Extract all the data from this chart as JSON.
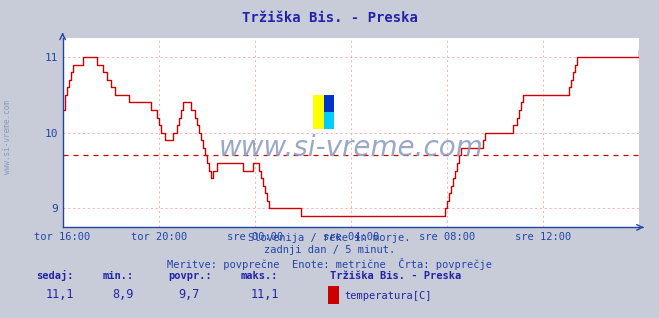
{
  "title": "Tržiška Bis. - Preska",
  "title_color": "#2222aa",
  "bg_color": "#c8ccd8",
  "plot_bg_color": "#ffffff",
  "line_color": "#cc0000",
  "avg_line_color": "#cc0000",
  "avg_value": 9.7,
  "ymin": 8.75,
  "ymax": 11.25,
  "yticks": [
    9,
    10,
    11
  ],
  "tick_color": "#2244aa",
  "grid_color": "#ffaaaa",
  "watermark_text": "www.si-vreme.com",
  "watermark_color": "#8899bb",
  "left_label": "www.si-vreme.com",
  "subtitle1": "Slovenija / reke in morje.",
  "subtitle2": "zadnji dan / 5 minut.",
  "subtitle3": "Meritve: povprečne  Enote: metrične  Črta: povprečje",
  "subtitle_color": "#2244aa",
  "footer_label_color": "#2222aa",
  "footer_value_color": "#2222aa",
  "sedaj": "11,1",
  "min_val": "8,9",
  "povpr": "9,7",
  "maks": "11,1",
  "station": "Tržiška Bis. - Preska",
  "param": "temperatura[C]",
  "xtick_labels": [
    "tor 16:00",
    "tor 20:00",
    "sre 00:00",
    "sre 04:00",
    "sre 08:00",
    "sre 12:00"
  ],
  "xtick_positions": [
    0,
    48,
    96,
    144,
    192,
    240
  ],
  "n_points": 289,
  "temperature_data": [
    10.3,
    10.5,
    10.6,
    10.7,
    10.8,
    10.9,
    10.9,
    10.9,
    10.9,
    10.9,
    11.0,
    11.0,
    11.0,
    11.0,
    11.0,
    11.0,
    11.0,
    10.9,
    10.9,
    10.9,
    10.8,
    10.8,
    10.7,
    10.7,
    10.6,
    10.6,
    10.5,
    10.5,
    10.5,
    10.5,
    10.5,
    10.5,
    10.5,
    10.4,
    10.4,
    10.4,
    10.4,
    10.4,
    10.4,
    10.4,
    10.4,
    10.4,
    10.4,
    10.4,
    10.3,
    10.3,
    10.3,
    10.2,
    10.1,
    10.0,
    10.0,
    9.9,
    9.9,
    9.9,
    9.9,
    10.0,
    10.0,
    10.1,
    10.2,
    10.3,
    10.4,
    10.4,
    10.4,
    10.4,
    10.3,
    10.3,
    10.2,
    10.1,
    10.0,
    9.9,
    9.8,
    9.7,
    9.6,
    9.5,
    9.4,
    9.5,
    9.5,
    9.6,
    9.6,
    9.6,
    9.6,
    9.6,
    9.6,
    9.6,
    9.6,
    9.6,
    9.6,
    9.6,
    9.6,
    9.6,
    9.5,
    9.5,
    9.5,
    9.5,
    9.5,
    9.6,
    9.6,
    9.6,
    9.5,
    9.4,
    9.3,
    9.2,
    9.1,
    9.0,
    9.0,
    9.0,
    9.0,
    9.0,
    9.0,
    9.0,
    9.0,
    9.0,
    9.0,
    9.0,
    9.0,
    9.0,
    9.0,
    9.0,
    9.0,
    8.9,
    8.9,
    8.9,
    8.9,
    8.9,
    8.9,
    8.9,
    8.9,
    8.9,
    8.9,
    8.9,
    8.9,
    8.9,
    8.9,
    8.9,
    8.9,
    8.9,
    8.9,
    8.9,
    8.9,
    8.9,
    8.9,
    8.9,
    8.9,
    8.9,
    8.9,
    8.9,
    8.9,
    8.9,
    8.9,
    8.9,
    8.9,
    8.9,
    8.9,
    8.9,
    8.9,
    8.9,
    8.9,
    8.9,
    8.9,
    8.9,
    8.9,
    8.9,
    8.9,
    8.9,
    8.9,
    8.9,
    8.9,
    8.9,
    8.9,
    8.9,
    8.9,
    8.9,
    8.9,
    8.9,
    8.9,
    8.9,
    8.9,
    8.9,
    8.9,
    8.9,
    8.9,
    8.9,
    8.9,
    8.9,
    8.9,
    8.9,
    8.9,
    8.9,
    8.9,
    8.9,
    8.9,
    9.0,
    9.1,
    9.2,
    9.3,
    9.4,
    9.5,
    9.6,
    9.7,
    9.8,
    9.8,
    9.8,
    9.8,
    9.8,
    9.8,
    9.8,
    9.8,
    9.8,
    9.8,
    9.8,
    9.9,
    10.0,
    10.0,
    10.0,
    10.0,
    10.0,
    10.0,
    10.0,
    10.0,
    10.0,
    10.0,
    10.0,
    10.0,
    10.0,
    10.0,
    10.1,
    10.1,
    10.2,
    10.3,
    10.4,
    10.5,
    10.5,
    10.5,
    10.5,
    10.5,
    10.5,
    10.5,
    10.5,
    10.5,
    10.5,
    10.5,
    10.5,
    10.5,
    10.5,
    10.5,
    10.5,
    10.5,
    10.5,
    10.5,
    10.5,
    10.5,
    10.5,
    10.5,
    10.6,
    10.7,
    10.8,
    10.9,
    11.0,
    11.0,
    11.0,
    11.0,
    11.0,
    11.0,
    11.0,
    11.0,
    11.0,
    11.0,
    11.0,
    11.0,
    11.0,
    11.0,
    11.0,
    11.0,
    11.0,
    11.0,
    11.0,
    11.0,
    11.0,
    11.0,
    11.0,
    11.0,
    11.0,
    11.0,
    11.0,
    11.0,
    11.0,
    11.0,
    11.0,
    11.1
  ]
}
